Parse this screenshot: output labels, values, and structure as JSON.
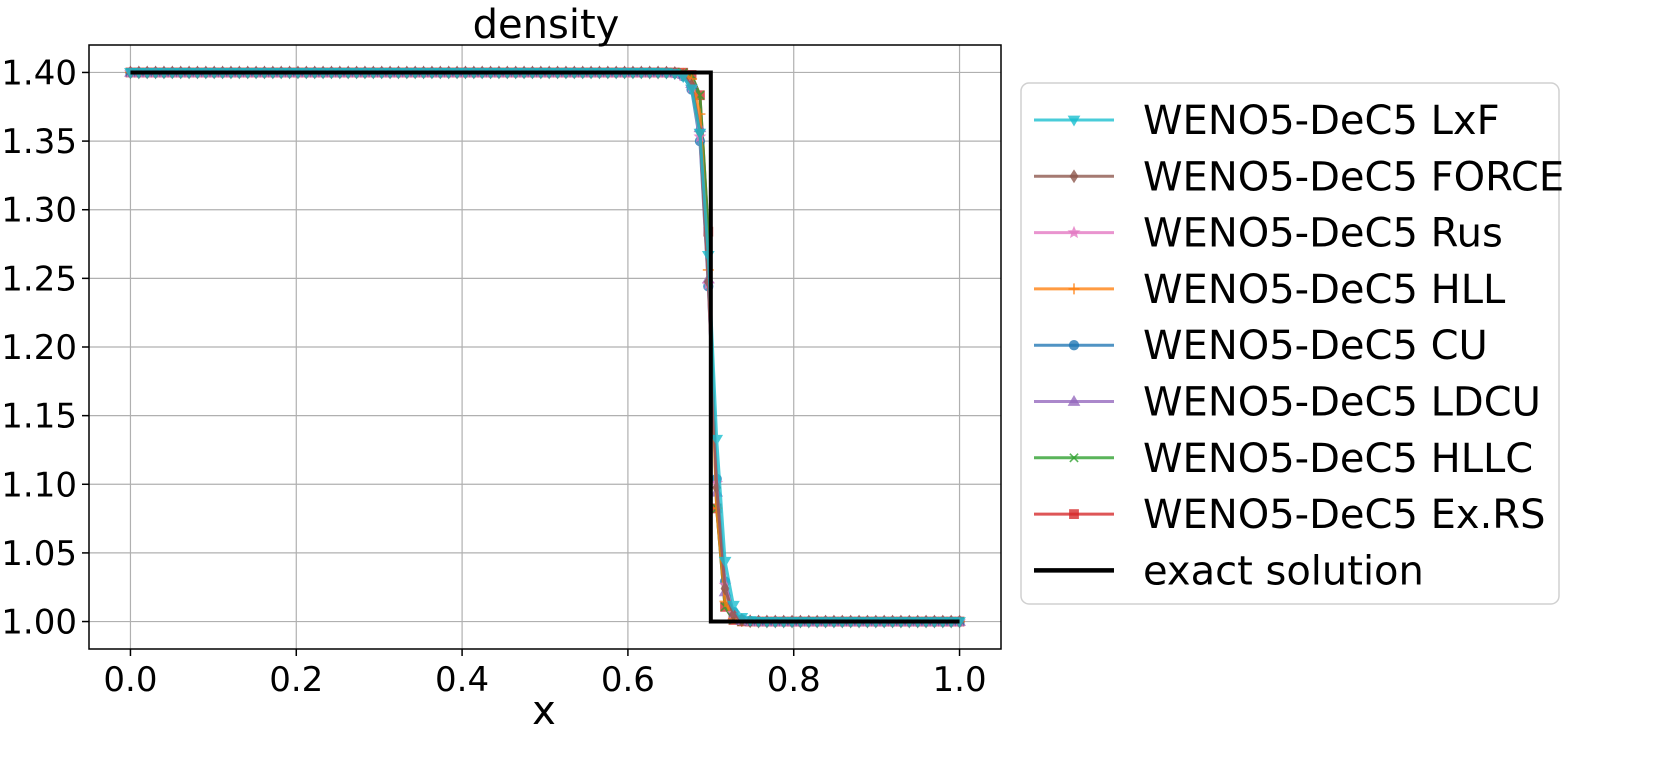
{
  "chart_data": {
    "type": "line",
    "title": "density",
    "xlabel": "x",
    "ylabel": "",
    "xlim": [
      -0.05,
      1.05
    ],
    "ylim": [
      0.98,
      1.42
    ],
    "xticks": [
      0.0,
      0.2,
      0.4,
      0.6,
      0.8,
      1.0
    ],
    "xtick_labels": [
      "0.0",
      "0.2",
      "0.4",
      "0.6",
      "0.8",
      "1.0"
    ],
    "yticks": [
      1.0,
      1.05,
      1.1,
      1.15,
      1.2,
      1.25,
      1.3,
      1.35,
      1.4
    ],
    "ytick_labels": [
      "1.00",
      "1.05",
      "1.10",
      "1.15",
      "1.20",
      "1.25",
      "1.30",
      "1.35",
      "1.40"
    ],
    "grid": true,
    "legend_position": "outside-right",
    "rho_left": 1.4,
    "rho_right": 1.0,
    "x_start": 0.0,
    "x_end": 1.0,
    "n_points": 100,
    "series": [
      {
        "name": "WENO5-DeC5 LxF",
        "color": "#17becf",
        "marker": "triangle-down",
        "shock_center": 0.702,
        "shock_width": 0.0145
      },
      {
        "name": "WENO5-DeC5 FORCE",
        "color": "#8c564b",
        "marker": "diamond",
        "shock_center": 0.7,
        "shock_width": 0.0125
      },
      {
        "name": "WENO5-DeC5 Rus",
        "color": "#e377c2",
        "marker": "star",
        "shock_center": 0.7,
        "shock_width": 0.013
      },
      {
        "name": "WENO5-DeC5 HLL",
        "color": "#ff7f0e",
        "marker": "plus",
        "shock_center": 0.7,
        "shock_width": 0.0105
      },
      {
        "name": "WENO5-DeC5 CU",
        "color": "#1f77b4",
        "marker": "circle",
        "shock_center": 0.7,
        "shock_width": 0.0135
      },
      {
        "name": "WENO5-DeC5 LDCU",
        "color": "#9467bd",
        "marker": "triangle-up",
        "shock_center": 0.7,
        "shock_width": 0.012
      },
      {
        "name": "WENO5-DeC5 HLLC",
        "color": "#2ca02c",
        "marker": "x",
        "shock_center": 0.701,
        "shock_width": 0.009
      },
      {
        "name": "WENO5-DeC5 Ex.RS",
        "color": "#d62728",
        "marker": "square",
        "shock_center": 0.701,
        "shock_width": 0.009
      },
      {
        "name": "exact solution",
        "color": "#000000",
        "marker": "none",
        "type": "step",
        "x": [
          0.0,
          0.7,
          0.7,
          1.0
        ],
        "y": [
          1.4,
          1.4,
          1.0,
          1.0
        ]
      }
    ]
  }
}
